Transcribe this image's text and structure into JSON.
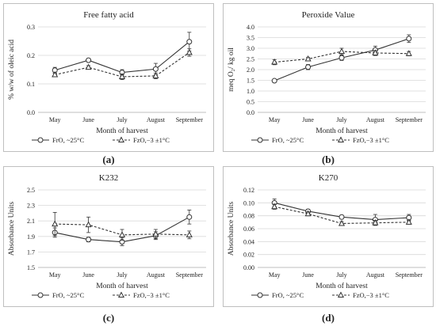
{
  "chart_data": [
    {
      "type": "line",
      "title": "Free fatty acid",
      "xlabel": "Month of harvest",
      "ylabel": "% w/w of oleic acid",
      "categories": [
        "May",
        "June",
        "July",
        "August",
        "September"
      ],
      "y_ticks": [
        "0.0",
        "0.1",
        "0.2",
        "0.3"
      ],
      "ylim": [
        0,
        0.3
      ],
      "grid": true,
      "legend_position": "bottom",
      "series": [
        {
          "name": "FrO, ~25°C",
          "marker": "circle",
          "line": "solid",
          "values": [
            0.148,
            0.183,
            0.14,
            0.152,
            0.248
          ],
          "errors": [
            0.01,
            0.006,
            0.01,
            0.02,
            0.033
          ]
        },
        {
          "name": "FzO,−3 ±1°C",
          "marker": "triangle",
          "line": "dashed",
          "values": [
            0.132,
            0.158,
            0.125,
            0.128,
            0.21
          ],
          "errors": [
            0.006,
            0.006,
            0.01,
            0.01,
            0.013
          ]
        }
      ],
      "caption": "(a)"
    },
    {
      "type": "line",
      "title": "Peroxide Value",
      "xlabel": "Month of harvest",
      "ylabel": "meq O₂/ kg oil",
      "categories": [
        "May",
        "June",
        "July",
        "August",
        "September"
      ],
      "y_ticks": [
        "0.0",
        "0.5",
        "1.0",
        "1.5",
        "2.0",
        "2.5",
        "3.0",
        "3.5",
        "4.0"
      ],
      "ylim": [
        0,
        4.0
      ],
      "grid": true,
      "legend_position": "bottom",
      "series": [
        {
          "name": "FrO, ~25°C",
          "marker": "circle",
          "line": "solid",
          "values": [
            1.48,
            2.12,
            2.55,
            2.92,
            3.45
          ],
          "errors": [
            0.05,
            0.12,
            0.12,
            0.18,
            0.18
          ]
        },
        {
          "name": "FzO,−3 ±1°C",
          "marker": "triangle",
          "line": "dashed",
          "values": [
            2.35,
            2.5,
            2.85,
            2.78,
            2.75
          ],
          "errors": [
            0.12,
            0.08,
            0.15,
            0.12,
            0.1
          ]
        }
      ],
      "caption": "(b)"
    },
    {
      "type": "line",
      "title": "K232",
      "xlabel": "Month of harvest",
      "ylabel": "Absorbance Units",
      "categories": [
        "May",
        "June",
        "July",
        "August",
        "September"
      ],
      "y_ticks": [
        "1.5",
        "1.7",
        "1.9",
        "2.1",
        "2.3",
        "2.5"
      ],
      "ylim": [
        1.5,
        2.5
      ],
      "grid": true,
      "legend_position": "bottom",
      "series": [
        {
          "name": "FrO, ~25°C",
          "marker": "circle",
          "line": "solid",
          "values": [
            1.95,
            1.86,
            1.83,
            1.91,
            2.15
          ],
          "errors": [
            0.06,
            0.03,
            0.05,
            0.05,
            0.09
          ]
        },
        {
          "name": "FzO,−3 ±1°C",
          "marker": "triangle",
          "line": "dashed",
          "values": [
            2.06,
            2.05,
            1.92,
            1.93,
            1.92
          ],
          "errors": [
            0.15,
            0.1,
            0.07,
            0.06,
            0.05
          ]
        }
      ],
      "caption": "(c)"
    },
    {
      "type": "line",
      "title": "K270",
      "xlabel": "Month of harvest",
      "ylabel": "Absorbance Units",
      "categories": [
        "May",
        "June",
        "July",
        "August",
        "September"
      ],
      "y_ticks": [
        "0.00",
        "0.02",
        "0.04",
        "0.06",
        "0.08",
        "0.10",
        "0.12"
      ],
      "ylim": [
        0,
        0.12
      ],
      "grid": true,
      "legend_position": "bottom",
      "series": [
        {
          "name": "FrO, ~25°C",
          "marker": "circle",
          "line": "solid",
          "values": [
            0.1,
            0.087,
            0.078,
            0.074,
            0.077
          ],
          "errors": [
            0.006,
            0.003,
            0.003,
            0.008,
            0.005
          ]
        },
        {
          "name": "FzO,−3 ±1°C",
          "marker": "triangle",
          "line": "dashed",
          "values": [
            0.094,
            0.083,
            0.068,
            0.069,
            0.07
          ],
          "errors": [
            0.004,
            0.003,
            0.003,
            0.004,
            0.003
          ]
        }
      ],
      "caption": "(d)"
    }
  ]
}
